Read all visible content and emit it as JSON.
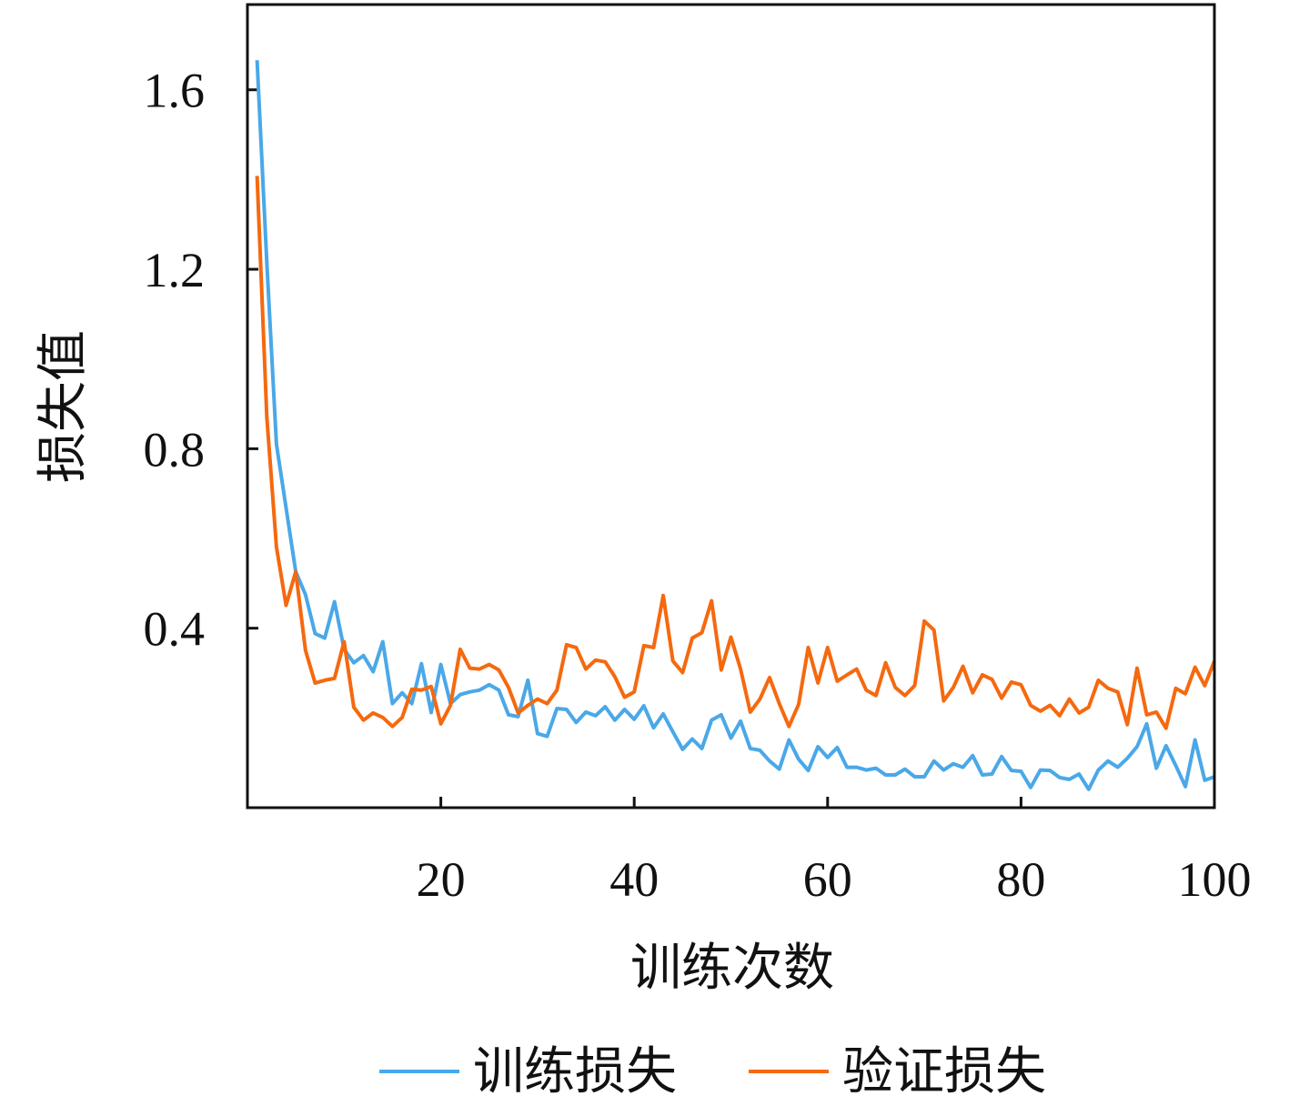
{
  "chart_data": {
    "type": "line",
    "title": "",
    "xlabel": "训练次数",
    "ylabel": "损失值",
    "xlim": [
      0,
      100
    ],
    "ylim": [
      0,
      1.79
    ],
    "xticks": [
      20,
      40,
      60,
      80,
      100
    ],
    "xtick_labels": [
      "20",
      "40",
      "60",
      "80",
      "100"
    ],
    "yticks": [
      0.4,
      0.8,
      1.2,
      1.6
    ],
    "ytick_labels": [
      "0.4",
      "0.8",
      "1.2",
      "1.6"
    ],
    "grid": false,
    "legend_position": "bottom",
    "x": [
      1,
      2,
      3,
      4,
      5,
      6,
      7,
      8,
      9,
      10,
      11,
      12,
      13,
      14,
      15,
      16,
      17,
      18,
      19,
      20,
      21,
      22,
      23,
      24,
      25,
      26,
      27,
      28,
      29,
      30,
      31,
      32,
      33,
      34,
      35,
      36,
      37,
      38,
      39,
      40,
      41,
      42,
      43,
      44,
      45,
      46,
      47,
      48,
      49,
      50,
      51,
      52,
      53,
      54,
      55,
      56,
      57,
      58,
      59,
      60,
      61,
      62,
      63,
      64,
      65,
      66,
      67,
      68,
      69,
      70,
      71,
      72,
      73,
      74,
      75,
      76,
      77,
      78,
      79,
      80,
      81,
      82,
      83,
      84,
      85,
      86,
      87,
      88,
      89,
      90,
      91,
      92,
      93,
      94,
      95,
      96,
      97,
      98,
      99,
      100
    ],
    "series": [
      {
        "name": "训练损失",
        "color": "#4aa8e8",
        "values": [
          1.666,
          1.215,
          0.81,
          0.668,
          0.526,
          0.475,
          0.388,
          0.378,
          0.459,
          0.353,
          0.323,
          0.339,
          0.303,
          0.37,
          0.232,
          0.256,
          0.232,
          0.321,
          0.212,
          0.319,
          0.232,
          0.252,
          0.258,
          0.262,
          0.274,
          0.262,
          0.207,
          0.203,
          0.284,
          0.165,
          0.159,
          0.221,
          0.219,
          0.19,
          0.213,
          0.205,
          0.225,
          0.195,
          0.219,
          0.197,
          0.227,
          0.178,
          0.209,
          0.169,
          0.13,
          0.153,
          0.132,
          0.195,
          0.207,
          0.155,
          0.193,
          0.132,
          0.128,
          0.104,
          0.086,
          0.151,
          0.108,
          0.083,
          0.136,
          0.112,
          0.134,
          0.09,
          0.09,
          0.084,
          0.088,
          0.073,
          0.073,
          0.086,
          0.069,
          0.069,
          0.104,
          0.084,
          0.098,
          0.09,
          0.116,
          0.073,
          0.075,
          0.114,
          0.083,
          0.081,
          0.045,
          0.084,
          0.083,
          0.067,
          0.063,
          0.075,
          0.041,
          0.084,
          0.104,
          0.09,
          0.11,
          0.136,
          0.187,
          0.088,
          0.138,
          0.094,
          0.047,
          0.151,
          0.061,
          0.069
        ]
      },
      {
        "name": "验证损失",
        "color": "#f5690f",
        "values": [
          1.408,
          0.871,
          0.581,
          0.451,
          0.526,
          0.351,
          0.278,
          0.284,
          0.288,
          0.37,
          0.224,
          0.195,
          0.211,
          0.201,
          0.181,
          0.201,
          0.264,
          0.262,
          0.27,
          0.187,
          0.228,
          0.353,
          0.311,
          0.309,
          0.319,
          0.307,
          0.268,
          0.211,
          0.228,
          0.242,
          0.232,
          0.262,
          0.363,
          0.357,
          0.309,
          0.329,
          0.325,
          0.292,
          0.246,
          0.258,
          0.361,
          0.357,
          0.473,
          0.327,
          0.301,
          0.378,
          0.39,
          0.461,
          0.307,
          0.38,
          0.309,
          0.213,
          0.242,
          0.29,
          0.232,
          0.181,
          0.23,
          0.357,
          0.278,
          0.357,
          0.282,
          0.296,
          0.309,
          0.262,
          0.25,
          0.323,
          0.268,
          0.25,
          0.272,
          0.416,
          0.396,
          0.238,
          0.268,
          0.315,
          0.256,
          0.296,
          0.286,
          0.244,
          0.28,
          0.274,
          0.228,
          0.215,
          0.228,
          0.205,
          0.242,
          0.211,
          0.224,
          0.284,
          0.266,
          0.258,
          0.185,
          0.311,
          0.207,
          0.213,
          0.177,
          0.266,
          0.254,
          0.313,
          0.272,
          0.327
        ]
      }
    ]
  }
}
